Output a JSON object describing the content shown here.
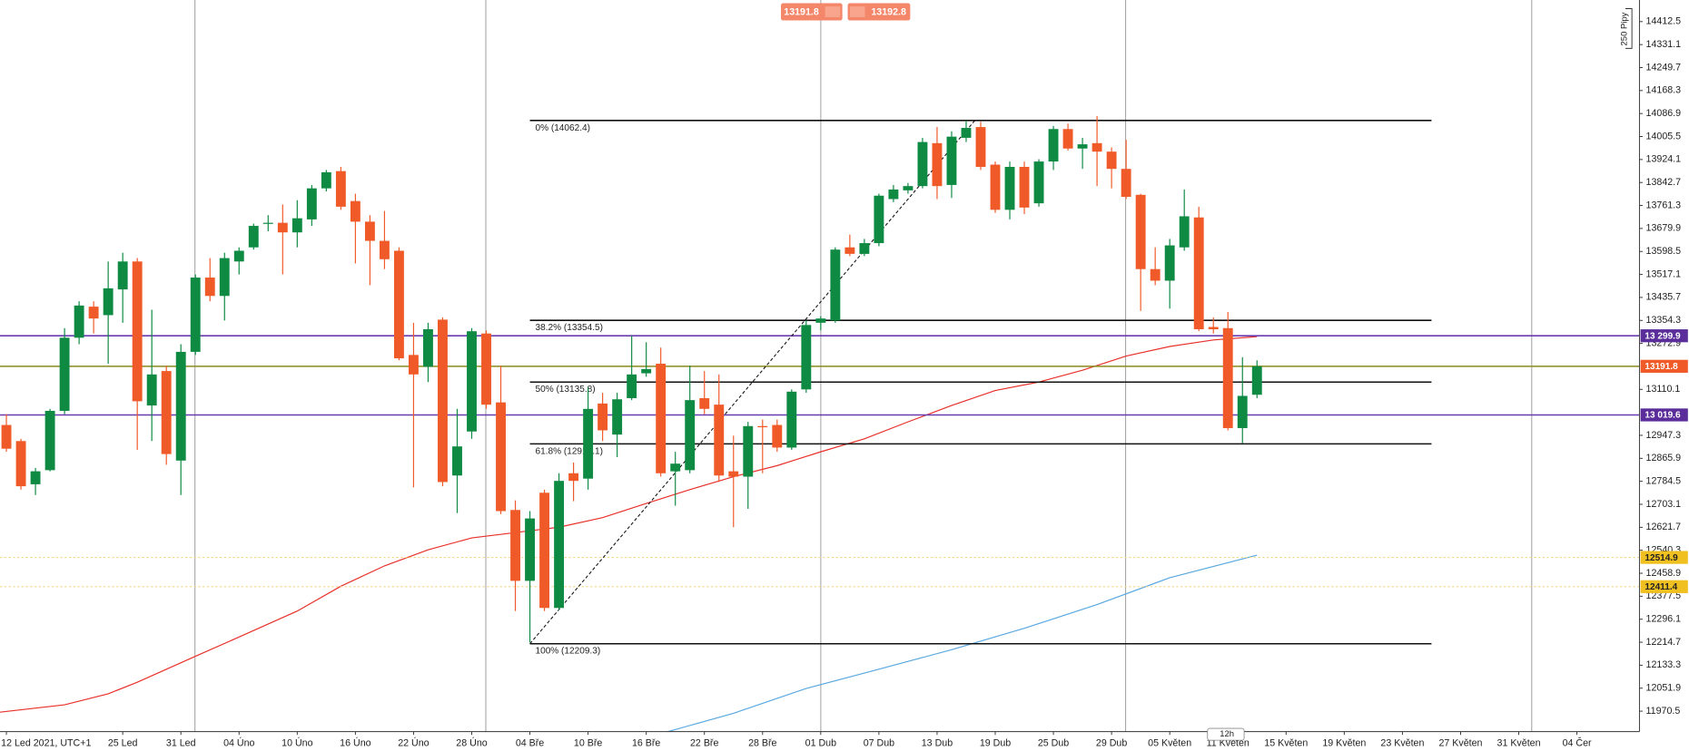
{
  "chart_data": {
    "type": "candlestick",
    "up_color": "#0e8a43",
    "down_color": "#f05a28",
    "x": [
      0,
      1,
      2,
      3,
      4,
      5,
      6,
      7,
      8,
      9,
      10,
      11,
      12,
      13,
      14,
      15,
      16,
      17,
      18,
      19,
      20,
      21,
      22,
      23,
      24,
      25,
      26,
      27,
      28,
      29,
      30,
      31,
      32,
      33,
      34,
      35,
      36,
      37,
      38,
      39,
      40,
      41,
      42,
      43,
      44,
      45,
      46,
      47,
      48,
      49,
      50,
      51,
      52,
      53,
      54,
      55,
      56,
      57,
      58,
      59,
      60,
      61,
      62,
      63,
      64,
      65,
      66,
      67,
      68,
      69,
      70,
      71,
      72,
      73,
      74,
      75,
      76,
      77,
      78,
      79,
      80,
      81,
      82,
      83,
      84,
      85,
      86
    ],
    "open": [
      12984,
      12927,
      12774,
      12824,
      13034,
      13293,
      13403,
      13373,
      13464,
      13563,
      13053,
      13175,
      12858,
      13243,
      13506,
      13441,
      13563,
      13613,
      13697,
      13700,
      13666,
      13712,
      13822,
      13883,
      13777,
      13704,
      13636,
      13601,
      13232,
      13190,
      13357,
      12805,
      12961,
      13308,
      13064,
      12683,
      12432,
      12744,
      12336,
      12813,
      12794,
      13060,
      12950,
      13079,
      13167,
      13201,
      12820,
      12824,
      13079,
      13056,
      12820,
      12801,
      12980,
      12984,
      12904,
      13110,
      13346,
      13354,
      13613,
      13590,
      13628,
      13784,
      13815,
      13830,
      13982,
      13834,
      14001,
      14039,
      13906,
      13746,
      13898,
      13769,
      13917,
      14032,
      13963,
      13982,
      13952,
      13891,
      13799,
      13536,
      13495,
      13613,
      13719,
      13331,
      13327,
      12973,
      13091
    ],
    "high": [
      13022,
      12935,
      12832,
      13041,
      13327,
      13422,
      13422,
      13563,
      13594,
      13575,
      13392,
      13194,
      13270,
      13517,
      13575,
      13594,
      13613,
      13697,
      13727,
      13765,
      13780,
      13834,
      13887,
      13898,
      13803,
      13727,
      13742,
      13613,
      13346,
      13346,
      13365,
      13041,
      13327,
      13319,
      13194,
      12717,
      12679,
      12755,
      12813,
      12851,
      13117,
      13098,
      13098,
      13300,
      13277,
      13258,
      12889,
      13194,
      13175,
      13163,
      12946,
      12995,
      13003,
      13003,
      13110,
      13354,
      13369,
      13613,
      13658,
      13643,
      13803,
      13834,
      13841,
      14001,
      14039,
      14024,
      14062,
      14058,
      13917,
      13917,
      13917,
      13925,
      14043,
      14051,
      14001,
      14078,
      13967,
      13994,
      13803,
      13613,
      13643,
      13818,
      13757,
      13365,
      13384,
      13224,
      13213
    ],
    "low": [
      12889,
      12755,
      12736,
      12820,
      13022,
      13270,
      13308,
      13201,
      13346,
      12896,
      12927,
      12843,
      12736,
      13232,
      13422,
      13354,
      13517,
      13605,
      13670,
      13517,
      13613,
      13689,
      13811,
      13746,
      13556,
      13479,
      13536,
      13213,
      12763,
      13136,
      12767,
      12672,
      12935,
      13041,
      12668,
      12325,
      12214,
      12325,
      12329,
      12714,
      12755,
      12927,
      12870,
      13072,
      13155,
      12801,
      12698,
      12813,
      13022,
      12782,
      12622,
      12687,
      12813,
      12889,
      12896,
      13098,
      13319,
      13346,
      13582,
      13582,
      13617,
      13773,
      13803,
      13822,
      13784,
      13788,
      13986,
      13887,
      13735,
      13712,
      13731,
      13757,
      13887,
      13956,
      13891,
      13830,
      13822,
      13784,
      13388,
      13479,
      13396,
      13601,
      13316,
      13308,
      12965,
      12919,
      13079
    ],
    "close": [
      12900,
      12767,
      12820,
      13034,
      13293,
      13407,
      13361,
      13468,
      13563,
      13068,
      13163,
      12881,
      13243,
      13506,
      13441,
      13575,
      13601,
      13689,
      13700,
      13666,
      13716,
      13822,
      13879,
      13757,
      13704,
      13636,
      13571,
      13220,
      13163,
      13323,
      12782,
      12908,
      13316,
      13056,
      12679,
      12432,
      12653,
      12336,
      12786,
      12786,
      13041,
      12965,
      13075,
      13163,
      13182,
      12813,
      12847,
      13072,
      13041,
      12805,
      12801,
      12980,
      12976,
      12904,
      13102,
      13338,
      13361,
      13605,
      13590,
      13628,
      13796,
      13818,
      13830,
      13986,
      13830,
      14005,
      14036,
      13898,
      13746,
      13898,
      13754,
      13917,
      14032,
      13963,
      13978,
      13952,
      13891,
      13792,
      13536,
      13495,
      13620,
      13723,
      13323,
      13323,
      12973,
      13087,
      13192
    ],
    "moving_averages": [
      {
        "color": "#e8302a",
        "x": [
          -0.44,
          4,
          7,
          9,
          13,
          16,
          20,
          23,
          26,
          29,
          32,
          35,
          38,
          41,
          44,
          47,
          50,
          53,
          56,
          59,
          62,
          65,
          68,
          71,
          74,
          77,
          80,
          83,
          86
        ],
        "values": [
          11967,
          11993,
          12032,
          12073,
          12165,
          12233,
          12325,
          12413,
          12485,
          12542,
          12584,
          12603,
          12622,
          12656,
          12706,
          12755,
          12801,
          12840,
          12889,
          12935,
          12995,
          13053,
          13106,
          13136,
          13178,
          13228,
          13262,
          13285,
          13297
        ]
      },
      {
        "color": "#5aa8e0",
        "x": [
          45,
          50,
          55,
          60,
          65,
          70,
          75,
          80,
          86
        ],
        "values": [
          11891,
          11963,
          12051,
          12119,
          12188,
          12264,
          12348,
          12443,
          12523
        ]
      }
    ],
    "fibonacci": {
      "x": [
        36,
        98
      ],
      "color": "#111111",
      "levels": [
        {
          "value": 14062.4,
          "label": "0% (14062.4)"
        },
        {
          "value": 13354.5,
          "label": "38.2% (13354.5)"
        },
        {
          "value": 13135.8,
          "label": "50% (13135.8)"
        },
        {
          "value": 12917.1,
          "label": "61.8% (12917.1)"
        },
        {
          "value": 12209.3,
          "label": "100% (12209.3)"
        }
      ]
    },
    "trendline": {
      "x": [
        36,
        66.6
      ],
      "values": [
        12209.3,
        14062.4
      ]
    },
    "price_lines": [
      {
        "value": 13299.9,
        "label": "13 299.9",
        "color": "#6a3ab0",
        "tag_color": "#5b2d9a",
        "style": "solid"
      },
      {
        "value": 13191.8,
        "label": "13191.8",
        "color": "#8a8a1a",
        "tag_color": "#f05a28",
        "style": "solid"
      },
      {
        "value": 13019.6,
        "label": "13 019.6",
        "color": "#6a3ab0",
        "tag_color": "#5b2d9a",
        "style": "solid"
      },
      {
        "value": 12514.9,
        "label": "12514.9",
        "color": "#f3d98a",
        "tag_color": "#f0c020",
        "style": "dotted"
      },
      {
        "value": 12411.4,
        "label": "12411.4",
        "color": "#f3d98a",
        "tag_color": "#f0c020",
        "style": "dotted"
      }
    ],
    "sell_price": "13191.8",
    "buy_price": "13192.8",
    "pip_label": "250 Pipy",
    "interval": "12h",
    "xlim": [
      -0.44,
      112.3
    ],
    "ylim": [
      11898,
      14489
    ],
    "yticks": [
      14412.5,
      14331.1,
      14249.7,
      14168.3,
      14086.9,
      14005.5,
      13924.1,
      13842.7,
      13761.3,
      13679.9,
      13598.5,
      13517.1,
      13435.7,
      13354.3,
      13272.9,
      13110.1,
      12947.3,
      12865.9,
      12784.5,
      12703.1,
      12621.7,
      12540.3,
      12458.9,
      12377.5,
      12296.1,
      12214.7,
      12133.3,
      12051.9,
      11970.5
    ],
    "xticks": [
      {
        "value": 0,
        "label": "12 Led 2021, UTC+1"
      },
      {
        "value": 8,
        "label": "25 Led"
      },
      {
        "value": 12,
        "label": "31 Led"
      },
      {
        "value": 16,
        "label": "04 Úno"
      },
      {
        "value": 20,
        "label": "10 Úno"
      },
      {
        "value": 24,
        "label": "16 Úno"
      },
      {
        "value": 28,
        "label": "22 Úno"
      },
      {
        "value": 32,
        "label": "28 Úno"
      },
      {
        "value": 36,
        "label": "04 Bře"
      },
      {
        "value": 40,
        "label": "10 Bře"
      },
      {
        "value": 44,
        "label": "16 Bře"
      },
      {
        "value": 48,
        "label": "22 Bře"
      },
      {
        "value": 52,
        "label": "28 Bře"
      },
      {
        "value": 56,
        "label": "01 Dub"
      },
      {
        "value": 60,
        "label": "07 Dub"
      },
      {
        "value": 64,
        "label": "13 Dub"
      },
      {
        "value": 68,
        "label": "19 Dub"
      },
      {
        "value": 72,
        "label": "25 Dub"
      },
      {
        "value": 76,
        "label": "29 Dub"
      },
      {
        "value": 80,
        "label": "05 Květen"
      },
      {
        "value": 84,
        "label": "11 Květen"
      },
      {
        "value": 88,
        "label": "15 Květen"
      },
      {
        "value": 92,
        "label": "19 Květen"
      },
      {
        "value": 96,
        "label": "23 Květen"
      },
      {
        "value": 100,
        "label": "27 Květen"
      },
      {
        "value": 104,
        "label": "31 Květen"
      },
      {
        "value": 108,
        "label": "04 Čer"
      }
    ]
  }
}
